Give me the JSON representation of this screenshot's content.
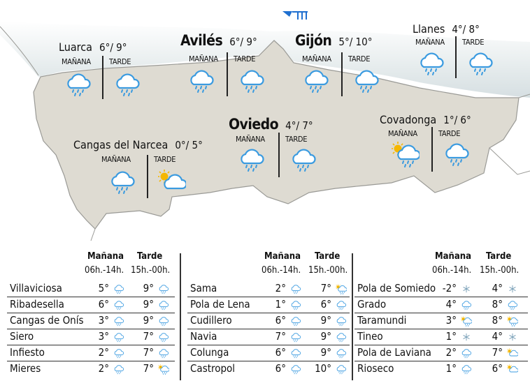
{
  "colors": {
    "land": "#dedbd2",
    "border": "#9a9a96",
    "rain": "#3b9be0",
    "sun": "#f5b700",
    "cloud_fill": "#ffffff",
    "logo": "#1f6fd0"
  },
  "labels": {
    "morning": "MAÑANA",
    "afternoon": "TARDE"
  },
  "map_cities": [
    {
      "name": "Luarca",
      "temps": "6°/ 9°",
      "big": false,
      "morning_icon": "rain-cloud",
      "afternoon_icon": "rain-cloud"
    },
    {
      "name": "Avilés",
      "temps": "6°/ 9°",
      "big": true,
      "morning_icon": "rain-cloud",
      "afternoon_icon": "rain-cloud"
    },
    {
      "name": "Gijón",
      "temps": "5°/ 10°",
      "big": true,
      "morning_icon": "rain-cloud",
      "afternoon_icon": "rain-cloud"
    },
    {
      "name": "Llanes",
      "temps": "4°/ 8°",
      "big": false,
      "morning_icon": "rain-cloud",
      "afternoon_icon": "rain-cloud"
    },
    {
      "name": "Oviedo",
      "temps": "4°/ 7°",
      "big": true,
      "morning_icon": "rain-cloud",
      "afternoon_icon": "rain-cloud"
    },
    {
      "name": "Covadonga",
      "temps": "1°/ 6°",
      "big": false,
      "morning_icon": "sun-rain-cloud",
      "afternoon_icon": "rain-cloud"
    },
    {
      "name": "Cangas del Narcea",
      "temps": "0°/ 5°",
      "big": false,
      "morning_icon": "rain-cloud",
      "afternoon_icon": "sun-cloud"
    }
  ],
  "table_header": {
    "morning": "Mañana",
    "afternoon": "Tarde",
    "morning_hours": "06h.-14h.",
    "afternoon_hours": "15h.-00h."
  },
  "tables": [
    [
      {
        "name": "Villaviciosa",
        "m": "5°",
        "mi": "rain",
        "a": "9°",
        "ai": "rain"
      },
      {
        "name": "Ribadesella",
        "m": "6°",
        "mi": "rain",
        "a": "9°",
        "ai": "rain"
      },
      {
        "name": "Cangas de Onís",
        "m": "3°",
        "mi": "rain",
        "a": "9°",
        "ai": "rain"
      },
      {
        "name": "Siero",
        "m": "3°",
        "mi": "rain",
        "a": "7°",
        "ai": "rain"
      },
      {
        "name": "Infiesto",
        "m": "2°",
        "mi": "rain",
        "a": "7°",
        "ai": "rain"
      },
      {
        "name": "Mieres",
        "m": "2°",
        "mi": "rain",
        "a": "7°",
        "ai": "sun-rain"
      }
    ],
    [
      {
        "name": "Sama",
        "m": "2°",
        "mi": "rain",
        "a": "7°",
        "ai": "sun-rain"
      },
      {
        "name": "Pola de Lena",
        "m": "1°",
        "mi": "rain",
        "a": "6°",
        "ai": "rain"
      },
      {
        "name": "Cudillero",
        "m": "6°",
        "mi": "rain",
        "a": "9°",
        "ai": "rain"
      },
      {
        "name": "Navia",
        "m": "7°",
        "mi": "rain",
        "a": "9°",
        "ai": "rain"
      },
      {
        "name": "Colunga",
        "m": "6°",
        "mi": "rain",
        "a": "9°",
        "ai": "rain"
      },
      {
        "name": "Castropol",
        "m": "6°",
        "mi": "rain",
        "a": "10°",
        "ai": "rain"
      }
    ],
    [
      {
        "name": "Pola de Somiedo",
        "m": "-2°",
        "mi": "snow",
        "a": "4°",
        "ai": "snow"
      },
      {
        "name": "Grado",
        "m": "4°",
        "mi": "rain",
        "a": "8°",
        "ai": "rain"
      },
      {
        "name": "Taramundi",
        "m": "3°",
        "mi": "sun-rain",
        "a": "8°",
        "ai": "sun-rain"
      },
      {
        "name": "Tineo",
        "m": "1°",
        "mi": "snow",
        "a": "4°",
        "ai": "snow"
      },
      {
        "name": "Pola de Laviana",
        "m": "2°",
        "mi": "rain",
        "a": "7°",
        "ai": "sun-cloud"
      },
      {
        "name": "Rioseco",
        "m": "1°",
        "mi": "rain",
        "a": "6°",
        "ai": "sun-cloud"
      }
    ]
  ]
}
